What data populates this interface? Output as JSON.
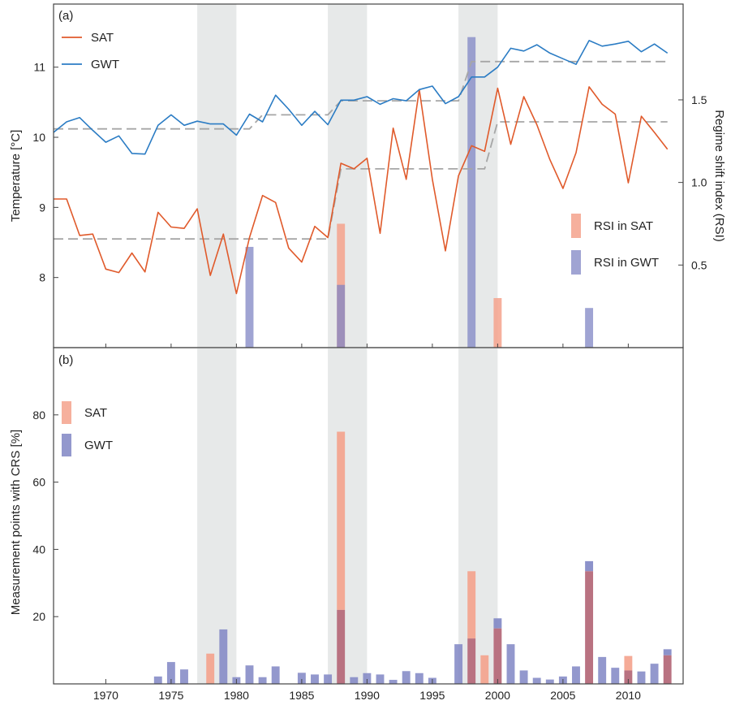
{
  "chart_data": [
    {
      "panel": "a",
      "type": "line",
      "panel_label": "(a)",
      "ylabel": "Temperature [°C]",
      "ylabel_right": "Regime shift index (RSI)",
      "xlim": [
        1966,
        2014.2
      ],
      "ylim": [
        7,
        11.9
      ],
      "ylim_right": [
        0,
        2.08
      ],
      "yticks": [
        8,
        9,
        10,
        11
      ],
      "yticks_right": [
        0.5,
        1.0,
        1.5
      ],
      "yticks_right_labels": [
        "0.5",
        "1.0",
        "1.5"
      ],
      "shaded_periods": [
        [
          1977,
          1980
        ],
        [
          1987,
          1990
        ],
        [
          1997,
          2000
        ]
      ],
      "colors": {
        "sat": "#e05a2b",
        "gwt": "#2b7cc4",
        "regime": "#a6a6a6",
        "rsi_sat": "#f4a28c",
        "rsi_gwt": "#8086c4",
        "shade": "#e7e9e9"
      },
      "series": [
        {
          "name": "SAT",
          "x": [
            1966,
            1967,
            1968,
            1969,
            1970,
            1971,
            1972,
            1973,
            1974,
            1975,
            1976,
            1977,
            1978,
            1979,
            1980,
            1981,
            1982,
            1983,
            1984,
            1985,
            1986,
            1987,
            1988,
            1989,
            1990,
            1991,
            1992,
            1993,
            1994,
            1995,
            1996,
            1997,
            1998,
            1999,
            2000,
            2001,
            2002,
            2003,
            2004,
            2005,
            2006,
            2007,
            2008,
            2009,
            2010,
            2011,
            2012,
            2013
          ],
          "values": [
            9.12,
            9.12,
            8.6,
            8.62,
            8.12,
            8.07,
            8.35,
            8.08,
            8.93,
            8.72,
            8.7,
            8.98,
            8.03,
            8.62,
            7.77,
            8.57,
            9.17,
            9.07,
            8.42,
            8.22,
            8.73,
            8.57,
            9.63,
            9.55,
            9.7,
            8.63,
            10.13,
            9.4,
            10.68,
            9.4,
            8.38,
            9.45,
            9.88,
            9.8,
            10.7,
            9.9,
            10.58,
            10.18,
            9.68,
            9.27,
            9.78,
            10.72,
            10.47,
            10.33,
            9.35,
            10.3,
            10.07,
            9.83
          ]
        },
        {
          "name": "GWT",
          "x": [
            1966,
            1967,
            1968,
            1969,
            1970,
            1971,
            1972,
            1973,
            1974,
            1975,
            1976,
            1977,
            1978,
            1979,
            1980,
            1981,
            1982,
            1983,
            1984,
            1985,
            1986,
            1987,
            1988,
            1989,
            1990,
            1991,
            1992,
            1993,
            1994,
            1995,
            1996,
            1997,
            1998,
            1999,
            2000,
            2001,
            2002,
            2003,
            2004,
            2005,
            2006,
            2007,
            2008,
            2009,
            2010,
            2011,
            2012,
            2013
          ],
          "values": [
            10.07,
            10.22,
            10.28,
            10.1,
            9.93,
            10.02,
            9.77,
            9.76,
            10.17,
            10.32,
            10.17,
            10.23,
            10.19,
            10.19,
            10.03,
            10.33,
            10.22,
            10.6,
            10.4,
            10.17,
            10.37,
            10.18,
            10.53,
            10.53,
            10.58,
            10.47,
            10.55,
            10.52,
            10.68,
            10.73,
            10.48,
            10.58,
            10.86,
            10.86,
            11.0,
            11.27,
            11.23,
            11.32,
            11.2,
            11.12,
            11.04,
            11.38,
            11.3,
            11.33,
            11.37,
            11.22,
            11.33,
            11.2
          ]
        }
      ],
      "regime_shifts": [
        {
          "name": "SAT regime mean",
          "x": [
            1966,
            1987,
            1988,
            1999,
            2000,
            2013
          ],
          "values": [
            8.55,
            8.55,
            9.55,
            9.55,
            10.22,
            10.22
          ]
        },
        {
          "name": "GWT regime mean",
          "x": [
            1966,
            1981,
            1982,
            1987,
            1988,
            1997,
            1998,
            2013
          ],
          "values": [
            10.12,
            10.12,
            10.32,
            10.32,
            10.52,
            10.52,
            11.08,
            11.08
          ]
        }
      ],
      "rsi_bars": [
        {
          "name": "RSI in SAT",
          "x": [
            1988,
            2000
          ],
          "values": [
            0.75,
            0.3
          ]
        },
        {
          "name": "RSI in GWT",
          "x": [
            1981,
            1988,
            1998,
            2007
          ],
          "values": [
            0.61,
            0.38,
            1.88,
            0.24
          ]
        }
      ],
      "legend": {
        "line_entries": [
          "SAT",
          "GWT"
        ],
        "bar_entries": [
          "RSI in SAT",
          "RSI in GWT"
        ],
        "line_placement": "top-left",
        "bar_placement": "right"
      }
    },
    {
      "panel": "b",
      "type": "bar",
      "panel_label": "(b)",
      "ylabel": "Measurement points with CRS [%]",
      "xlim": [
        1966,
        2014.2
      ],
      "ylim": [
        0,
        100
      ],
      "yticks": [
        20,
        40,
        60,
        80
      ],
      "xticks": [
        1970,
        1975,
        1980,
        1985,
        1990,
        1995,
        2000,
        2005,
        2010
      ],
      "shaded_periods": [
        [
          1977,
          1980
        ],
        [
          1987,
          1990
        ],
        [
          1997,
          2000
        ]
      ],
      "colors": {
        "sat": "#f4a28c",
        "gwt": "#8086c4",
        "overlap": "#b97281",
        "shade": "#e7e9e9"
      },
      "series": [
        {
          "name": "SAT",
          "x": [
            1978,
            1988,
            1998,
            1999,
            2000,
            2007,
            2010,
            2013
          ],
          "values": [
            9,
            75,
            33.5,
            8.5,
            16.5,
            33.5,
            8.3,
            8.5
          ]
        },
        {
          "name": "GWT",
          "x": [
            1974,
            1975,
            1976,
            1979,
            1980,
            1981,
            1982,
            1983,
            1985,
            1986,
            1987,
            1988,
            1989,
            1990,
            1991,
            1992,
            1993,
            1994,
            1995,
            1997,
            1998,
            2000,
            2001,
            2002,
            2003,
            2004,
            2005,
            2006,
            2007,
            2008,
            2009,
            2010,
            2011,
            2012,
            2013
          ],
          "values": [
            2.2,
            6.5,
            4.3,
            16.2,
            2.0,
            5.5,
            2.0,
            5.2,
            3.3,
            2.8,
            2.8,
            22,
            2.0,
            3.2,
            2.8,
            1.2,
            3.8,
            3.2,
            1.8,
            11.8,
            13.5,
            19.5,
            11.8,
            4.0,
            1.8,
            1.3,
            2.2,
            5.2,
            36.5,
            8.0,
            4.8,
            4.0,
            3.7,
            6.0,
            10.3
          ]
        }
      ],
      "legend": {
        "entries": [
          "SAT",
          "GWT"
        ],
        "placement": "top-left"
      }
    }
  ]
}
